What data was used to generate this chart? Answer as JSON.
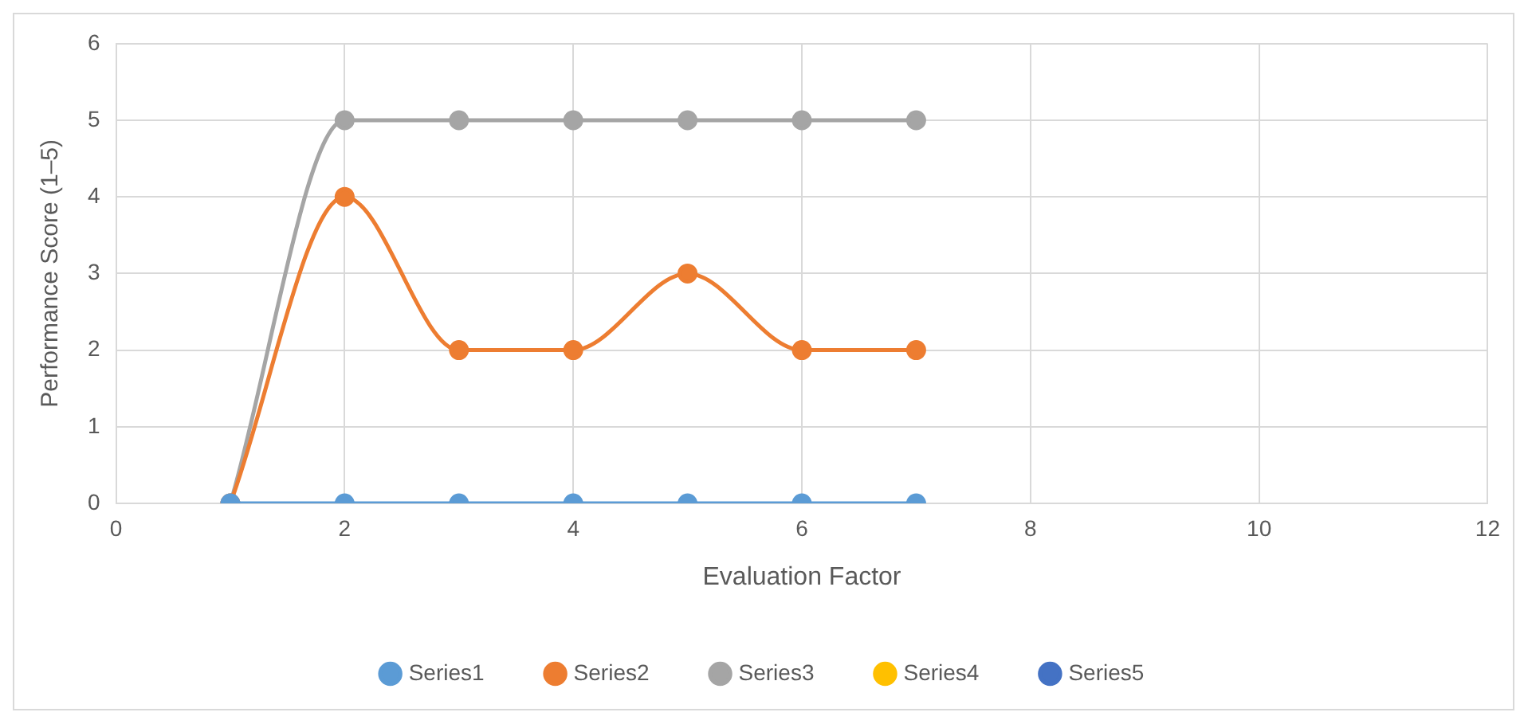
{
  "chart_data": {
    "type": "line",
    "xlabel": "Evaluation Factor",
    "ylabel": "Performance Score (1–5)",
    "x": [
      1,
      2,
      3,
      4,
      5,
      6,
      7
    ],
    "series": [
      {
        "name": "Series1",
        "color": "#5b9bd5",
        "values": [
          0,
          0,
          0,
          0,
          0,
          0,
          0
        ]
      },
      {
        "name": "Series2",
        "color": "#ed7d31",
        "values": [
          0,
          4,
          2,
          2,
          3,
          2,
          2
        ]
      },
      {
        "name": "Series3",
        "color": "#a5a5a5",
        "values": [
          0,
          5,
          5,
          5,
          5,
          5,
          5
        ]
      },
      {
        "name": "Series4",
        "color": "#ffc000",
        "values": [
          null,
          null,
          null,
          null,
          null,
          null,
          null
        ]
      },
      {
        "name": "Series5",
        "color": "#4472c4",
        "values": [
          null,
          null,
          null,
          null,
          null,
          null,
          null
        ]
      }
    ],
    "xlim": [
      0,
      12
    ],
    "xticks": [
      0,
      2,
      4,
      6,
      8,
      10,
      12
    ],
    "ylim": [
      0,
      6
    ],
    "yticks": [
      0,
      1,
      2,
      3,
      4,
      5,
      6
    ],
    "grid": true,
    "legend": "bottom",
    "marker": "circle",
    "line_style": "solid"
  }
}
